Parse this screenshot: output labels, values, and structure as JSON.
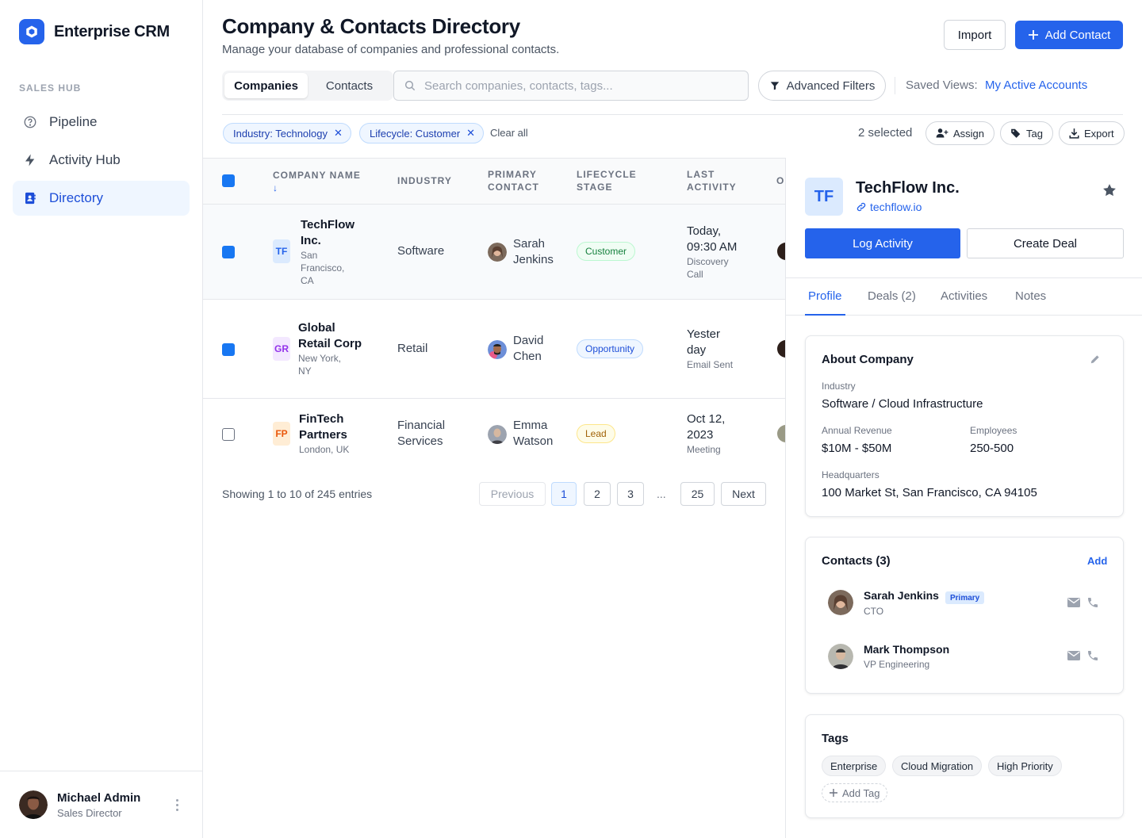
{
  "app": {
    "name": "Enterprise CRM"
  },
  "sidebar": {
    "section": "SALES HUB",
    "items": [
      {
        "label": "Pipeline",
        "icon": "help-circle-icon"
      },
      {
        "label": "Activity Hub",
        "icon": "lightning-icon"
      },
      {
        "label": "Directory",
        "icon": "contacts-book-icon",
        "active": true
      }
    ],
    "user": {
      "name": "Michael Admin",
      "role": "Sales Director"
    }
  },
  "header": {
    "title": "Company & Contacts Directory",
    "subtitle": "Manage your database of companies and professional contacts.",
    "import_label": "Import",
    "add_label": "Add Contact"
  },
  "toolbar": {
    "tabs": [
      "Companies",
      "Contacts"
    ],
    "active_tab": "Companies",
    "search_placeholder": "Search companies, contacts, tags...",
    "filters_label": "Advanced Filters",
    "saved_views_label": "Saved Views:",
    "saved_view": "My Active Accounts"
  },
  "filters": {
    "chips": [
      "Industry: Technology",
      "Lifecycle: Customer"
    ],
    "clear_label": "Clear all",
    "selected_text": "2 selected",
    "actions": [
      "Assign",
      "Tag",
      "Export"
    ]
  },
  "table": {
    "columns": [
      "COMPANY NAME",
      "INDUSTRY",
      "PRIMARY",
      "CONTACT",
      "LIFECYCLE",
      "STAGE",
      "LAST",
      "ACTIVITY",
      "O"
    ],
    "sort_glyph": "↓",
    "rows": [
      {
        "initials": "TF",
        "name": [
          "TechFlow",
          "Inc."
        ],
        "location": [
          "San",
          "Francisco,",
          "CA"
        ],
        "industry": [
          "Software"
        ],
        "contact": [
          "Sarah",
          "Jenkins"
        ],
        "stage": "Customer",
        "activity": [
          "Today,",
          "09:30 AM"
        ],
        "activity_type": [
          "Discovery",
          "Call"
        ],
        "selected": true
      },
      {
        "initials": "GR",
        "name": [
          "Global",
          "Retail Corp"
        ],
        "location": [
          "New York,",
          "NY"
        ],
        "industry": [
          "Retail"
        ],
        "contact": [
          "David",
          "Chen"
        ],
        "stage": "Opportunity",
        "activity": [
          "Yester",
          "day"
        ],
        "activity_type": [
          "Email Sent"
        ],
        "selected": true
      },
      {
        "initials": "FP",
        "name": [
          "FinTech",
          "Partners"
        ],
        "location": [
          "London, UK"
        ],
        "industry": [
          "Financial",
          "Services"
        ],
        "contact": [
          "Emma",
          "Watson"
        ],
        "stage": "Lead",
        "activity": [
          "Oct 12,",
          "2023"
        ],
        "activity_type": [
          "Meeting"
        ],
        "selected": false
      }
    ]
  },
  "pagination": {
    "summary": "Showing 1 to 10 of 245 entries",
    "prev": "Previous",
    "pages": [
      "1",
      "2",
      "3"
    ],
    "ellipsis": "...",
    "last": "25",
    "next": "Next",
    "current": "1"
  },
  "detail": {
    "initials": "TF",
    "name": "TechFlow Inc.",
    "website": "techflow.io",
    "log_label": "Log Activity",
    "deal_label": "Create Deal",
    "tabs": [
      "Profile",
      "Deals (2)",
      "Activities",
      "Notes"
    ],
    "active_tab": "Profile",
    "about": {
      "title": "About Company",
      "industry_label": "Industry",
      "industry": "Software / Cloud Infrastructure",
      "revenue_label": "Annual Revenue",
      "revenue": "$10M - $50M",
      "employees_label": "Employees",
      "employees": "250-500",
      "hq_label": "Headquarters",
      "hq": "100 Market St, San Francisco, CA 94105"
    },
    "contacts": {
      "title": "Contacts (3)",
      "add_label": "Add",
      "people": [
        {
          "name": "Sarah Jenkins",
          "role": "CTO",
          "badge": "Primary"
        },
        {
          "name": "Mark Thompson",
          "role": "VP Engineering"
        }
      ]
    },
    "tags": {
      "title": "Tags",
      "items": [
        "Enterprise",
        "Cloud Migration",
        "High Priority"
      ],
      "add_label": "Add Tag"
    }
  },
  "colors": {
    "accent": "#2563eb",
    "checkbox": "#1877f2",
    "customer": "#15803d",
    "opportunity": "#1d4ed8",
    "lead": "#a16207"
  }
}
